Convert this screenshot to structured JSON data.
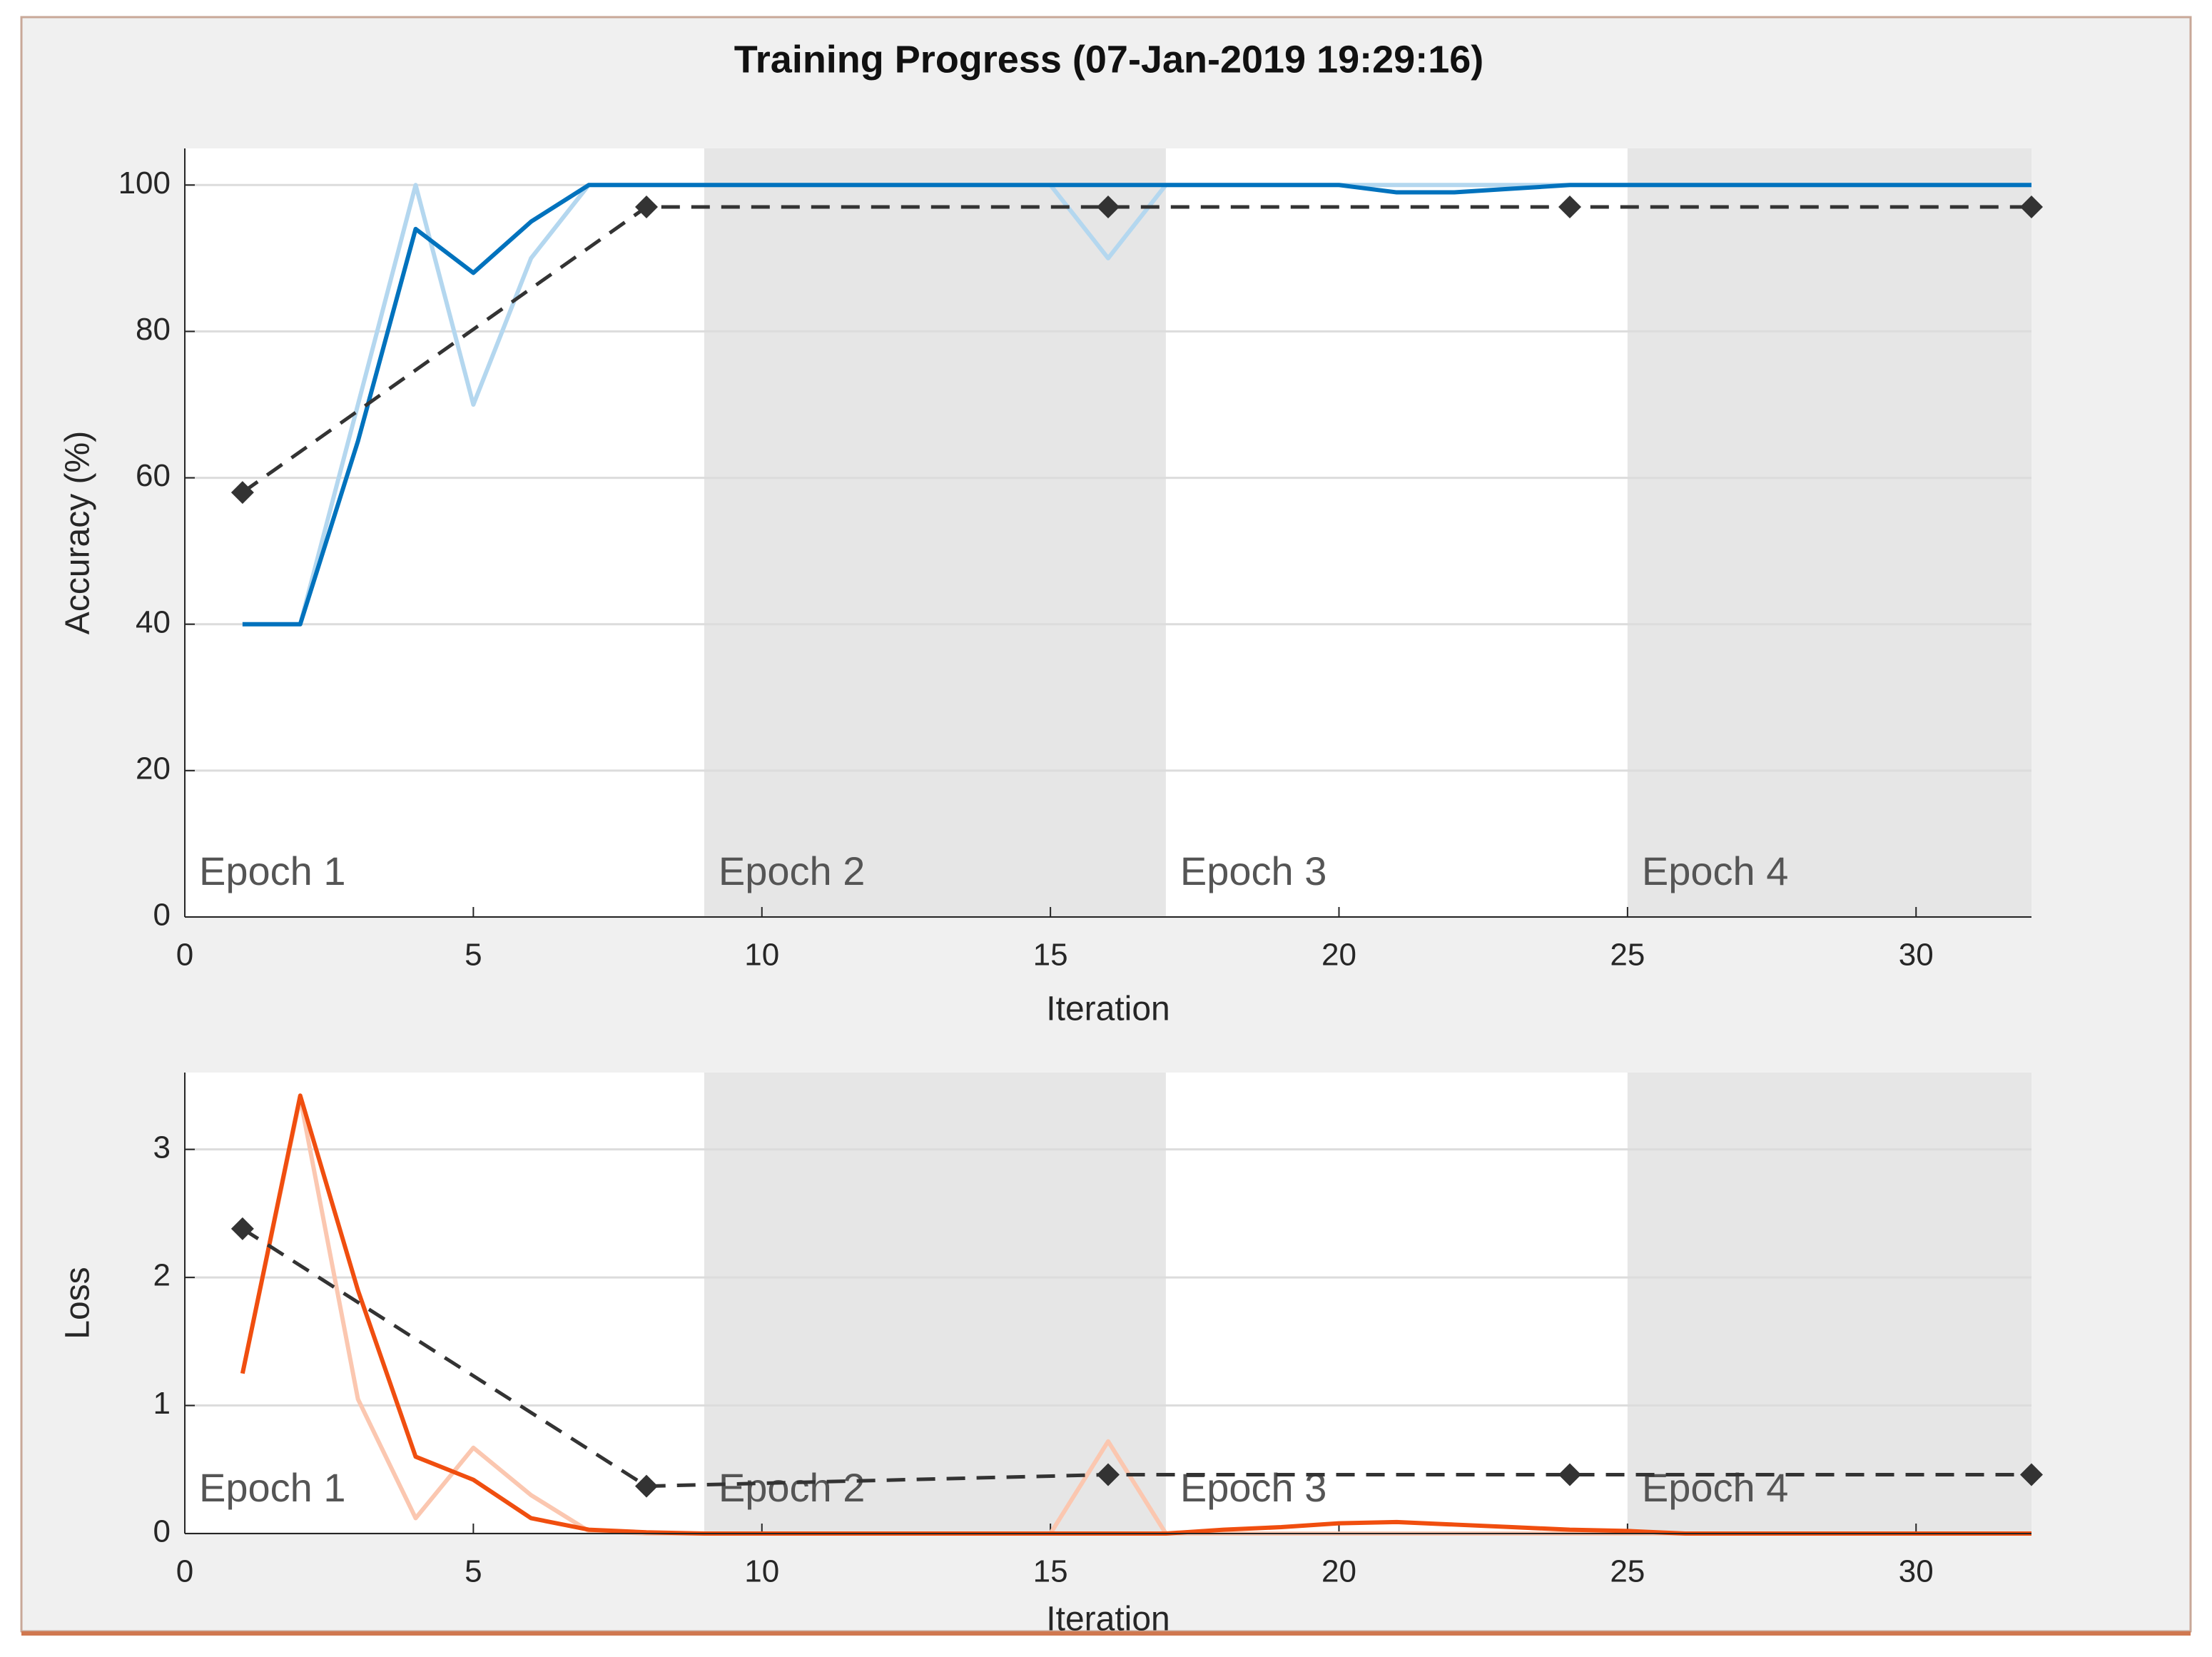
{
  "title": "Training Progress (07-Jan-2019 19:29:16)",
  "chart_data": [
    {
      "type": "line",
      "xlabel": "Iteration",
      "ylabel": "Accuracy (%)",
      "xlim": [
        0,
        32
      ],
      "xticks": [
        0,
        5,
        10,
        15,
        20,
        25,
        30
      ],
      "ylim": [
        0,
        105
      ],
      "yticks": [
        0,
        20,
        40,
        60,
        80,
        100
      ],
      "grid": "y",
      "shade_color": "#e6e6e6",
      "epochs": [
        {
          "label": "Epoch 1",
          "start": 0,
          "end": 9
        },
        {
          "label": "Epoch 2",
          "start": 9,
          "end": 17
        },
        {
          "label": "Epoch 3",
          "start": 17,
          "end": 25
        },
        {
          "label": "Epoch 4",
          "start": 25,
          "end": 32
        }
      ],
      "series": [
        {
          "color": "#b4d7ef",
          "style": "solid",
          "x": [
            1,
            2,
            3,
            4,
            5,
            6,
            7,
            8,
            9,
            10,
            11,
            12,
            13,
            14,
            15,
            16,
            17,
            18,
            19,
            20,
            21,
            22,
            23,
            24,
            25,
            26,
            27,
            28,
            29,
            30,
            31,
            32
          ],
          "values": [
            40,
            40,
            70,
            100,
            70,
            90,
            100,
            100,
            100,
            100,
            100,
            100,
            100,
            100,
            100,
            90,
            100,
            100,
            100,
            100,
            100,
            100,
            100,
            100,
            100,
            100,
            100,
            100,
            100,
            100,
            100,
            100
          ]
        },
        {
          "color": "#0072bd",
          "style": "solid",
          "x": [
            1,
            2,
            3,
            4,
            5,
            6,
            7,
            8,
            9,
            10,
            11,
            12,
            13,
            14,
            15,
            16,
            17,
            18,
            19,
            20,
            21,
            22,
            23,
            24,
            25,
            26,
            27,
            28,
            29,
            30,
            31,
            32
          ],
          "values": [
            40,
            40,
            65,
            94,
            88,
            95,
            100,
            100,
            100,
            100,
            100,
            100,
            100,
            100,
            100,
            100,
            100,
            100,
            100,
            100,
            99,
            99,
            99.5,
            100,
            100,
            100,
            100,
            100,
            100,
            100,
            100,
            100
          ]
        },
        {
          "color": "#333333",
          "style": "dashed",
          "marker": "diamond",
          "x": [
            1,
            8,
            16,
            24,
            32
          ],
          "values": [
            58,
            97,
            97,
            97,
            97
          ]
        }
      ]
    },
    {
      "type": "line",
      "xlabel": "Iteration",
      "ylabel": "Loss",
      "xlim": [
        0,
        32
      ],
      "xticks": [
        0,
        5,
        10,
        15,
        20,
        25,
        30
      ],
      "ylim": [
        0,
        3.6
      ],
      "yticks": [
        0,
        1,
        2,
        3
      ],
      "grid": "y",
      "shade_color": "#e6e6e6",
      "epochs": [
        {
          "label": "Epoch 1",
          "start": 0,
          "end": 9
        },
        {
          "label": "Epoch 2",
          "start": 9,
          "end": 17
        },
        {
          "label": "Epoch 3",
          "start": 17,
          "end": 25
        },
        {
          "label": "Epoch 4",
          "start": 25,
          "end": 32
        }
      ],
      "series": [
        {
          "color": "#fbc7b0",
          "style": "solid",
          "x": [
            1,
            2,
            3,
            4,
            5,
            6,
            7,
            8,
            9,
            10,
            11,
            12,
            13,
            14,
            15,
            16,
            17,
            18,
            19,
            20,
            21,
            22,
            23,
            24,
            25,
            26,
            27,
            28,
            29,
            30,
            31,
            32
          ],
          "values": [
            1.25,
            3.4,
            1.05,
            0.12,
            0.67,
            0.3,
            0.02,
            0,
            0,
            0,
            0,
            0,
            0,
            0,
            0,
            0.72,
            0,
            0,
            0,
            0,
            0,
            0,
            0,
            0,
            0,
            0,
            0,
            0,
            0,
            0,
            0,
            0
          ]
        },
        {
          "color": "#f04e0f",
          "style": "solid",
          "x": [
            1,
            2,
            3,
            4,
            5,
            6,
            7,
            8,
            9,
            10,
            11,
            12,
            13,
            14,
            15,
            16,
            17,
            18,
            19,
            20,
            21,
            22,
            23,
            24,
            25,
            26,
            27,
            28,
            29,
            30,
            31,
            32
          ],
          "values": [
            1.25,
            3.42,
            1.9,
            0.6,
            0.42,
            0.12,
            0.03,
            0.01,
            0,
            0,
            0,
            0,
            0,
            0,
            0,
            0,
            0,
            0.03,
            0.05,
            0.08,
            0.09,
            0.07,
            0.05,
            0.03,
            0.02,
            0,
            0,
            0,
            0,
            0,
            0,
            0
          ]
        },
        {
          "color": "#333333",
          "style": "dashed",
          "marker": "diamond",
          "x": [
            1,
            8,
            16,
            24,
            32
          ],
          "values": [
            2.38,
            0.37,
            0.46,
            0.46,
            0.46
          ]
        }
      ]
    }
  ]
}
